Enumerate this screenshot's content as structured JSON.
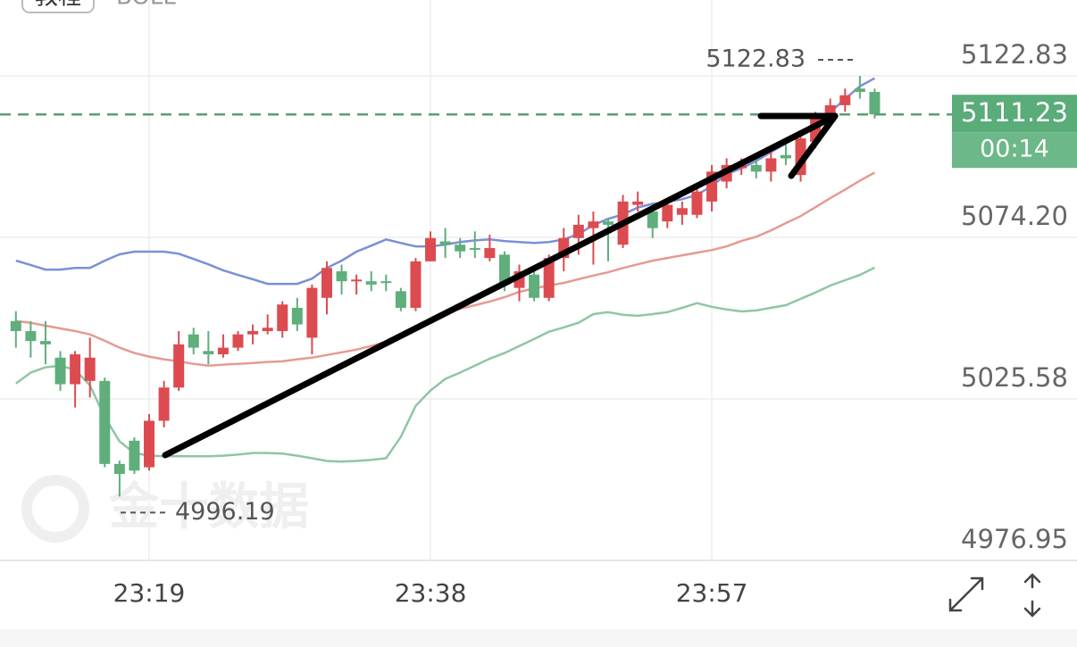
{
  "chart_data": {
    "type": "candlestick",
    "header_button": "教程",
    "indicator": "BOLL",
    "watermark": "金十数据",
    "categories": [
      null,
      null,
      null,
      null,
      null,
      null,
      null,
      null,
      null,
      "23:19",
      null,
      null,
      null,
      null,
      null,
      null,
      null,
      null,
      null,
      null,
      null,
      null,
      null,
      null,
      null,
      null,
      null,
      null,
      "23:38",
      null,
      null,
      null,
      null,
      null,
      null,
      null,
      null,
      null,
      null,
      null,
      null,
      null,
      null,
      null,
      null,
      null,
      null,
      "23:57",
      null,
      null,
      null,
      null,
      null,
      null,
      null,
      null,
      null,
      null,
      null
    ],
    "open": [
      5049,
      5046,
      5043,
      5038,
      5030,
      5031,
      5031,
      5006,
      5013,
      5005,
      5019,
      5029,
      5045,
      5040,
      5039,
      5041,
      5045,
      5046,
      5046,
      5053,
      5044,
      5056,
      5064,
      5061,
      5061,
      5061,
      5058,
      5053,
      5067,
      5073,
      5072,
      5071,
      5068,
      5069,
      5059,
      5063,
      5056,
      5068,
      5074,
      5077,
      5079,
      5072,
      5084,
      5082,
      5079,
      5081,
      5081,
      5085,
      5091,
      5095,
      5096,
      5094,
      5099,
      5093,
      5103,
      5109,
      5114,
      5119,
      5118
    ],
    "high": [
      5052,
      5049,
      5049,
      5040,
      5040,
      5044,
      5032,
      5007,
      5014,
      5021,
      5031,
      5046,
      5047,
      5046,
      5045,
      5046,
      5048,
      5051,
      5055,
      5056,
      5060,
      5067,
      5066,
      5063,
      5064,
      5063,
      5059,
      5068,
      5076,
      5077,
      5074,
      5076,
      5075,
      5070,
      5066,
      5065,
      5069,
      5077,
      5081,
      5082,
      5080,
      5087,
      5088,
      5083,
      5086,
      5085,
      5089,
      5096,
      5098,
      5098,
      5098,
      5100,
      5103,
      5106,
      5112,
      5116,
      5119,
      5122.83,
      5119
    ],
    "low": [
      5041,
      5038,
      5036,
      5028,
      5023,
      5026,
      5005,
      4996.19,
      5003,
      5004,
      5017,
      5028,
      5039,
      5036,
      5038,
      5040,
      5042,
      5045,
      5044,
      5046,
      5039,
      5051,
      5057,
      5057,
      5058,
      5058,
      5052,
      5052,
      5067,
      5068,
      5068,
      5068,
      5067,
      5058,
      5055,
      5055,
      5055,
      5064,
      5069,
      5066,
      5067,
      5071,
      5082,
      5074,
      5077,
      5078,
      5080,
      5082,
      5089,
      5093,
      5092,
      5091,
      5096,
      5091,
      5101,
      5108,
      5112,
      5116,
      5110
    ],
    "close": [
      5046,
      5043,
      5042,
      5030,
      5039,
      5038,
      5006,
      5003,
      5004,
      5019,
      5029,
      5042,
      5041,
      5039,
      5041,
      5045,
      5046,
      5047,
      5054,
      5048,
      5059,
      5065,
      5061,
      5061.5,
      5060,
      5060.5,
      5053,
      5067,
      5074,
      5072,
      5070,
      5070.5,
      5071,
      5060,
      5064,
      5056,
      5068,
      5074,
      5078,
      5079,
      5078,
      5085,
      5085,
      5077,
      5084,
      5083,
      5088,
      5094,
      5096,
      5096,
      5094,
      5098,
      5098,
      5104,
      5110,
      5114,
      5117,
      5118,
      5111.23
    ],
    "up_color": "#dc4b50",
    "down_color": "#5fae7b",
    "bands": [
      {
        "color": "#7b8fd8",
        "values": [
          5067.2,
          5065.9,
          5064.5,
          5064.5,
          5065.0,
          5065.0,
          5067.2,
          5069.1,
          5069.9,
          5069.9,
          5069.9,
          5069.3,
          5067.7,
          5066.1,
          5064.3,
          5062.9,
          5061.6,
          5060.2,
          5060.2,
          5060.2,
          5061.8,
          5065.0,
          5067.2,
          5069.9,
          5071.7,
          5073.6,
          5072.5,
          5071.5,
          5071.5,
          5072.0,
          5072.8,
          5073.3,
          5073.6,
          5073.1,
          5072.8,
          5072.5,
          5072.8,
          5073.6,
          5075.2,
          5077.9,
          5079.8,
          5081.1,
          5083.2,
          5084.3,
          5084.9,
          5085.7,
          5087.0,
          5089.7,
          5093.2,
          5095.0,
          5097.2,
          5099.9,
          5102.5,
          5105.2,
          5108.4,
          5111.9,
          5115.9,
          5119.7,
          5122.1
        ]
      },
      {
        "color": "#e69a94",
        "values": [
          5049.0,
          5048.5,
          5047.6,
          5046.8,
          5046.0,
          5045.0,
          5043.1,
          5041.0,
          5039.4,
          5038.3,
          5037.5,
          5036.9,
          5036.1,
          5035.6,
          5035.9,
          5036.1,
          5036.4,
          5036.7,
          5036.9,
          5037.5,
          5038.0,
          5038.8,
          5039.6,
          5040.4,
          5041.5,
          5042.8,
          5044.7,
          5046.8,
          5049.5,
          5051.4,
          5052.7,
          5053.8,
          5054.9,
          5056.2,
          5057.8,
          5058.9,
          5059.7,
          5060.5,
          5061.6,
          5062.7,
          5063.7,
          5065.0,
          5066.1,
          5067.2,
          5068.0,
          5068.8,
          5069.6,
          5070.4,
          5071.5,
          5073.1,
          5074.4,
          5076.3,
          5078.5,
          5080.6,
          5083.3,
          5086.0,
          5088.6,
          5091.3,
          5093.7
        ]
      },
      {
        "color": "#8fc6a3",
        "values": [
          5030.2,
          5033.5,
          5035.1,
          5035.6,
          5034.3,
          5029.7,
          5020.1,
          5012.8,
          5009.3,
          5008.5,
          5008.3,
          5008.3,
          5008.3,
          5008.3,
          5008.5,
          5008.8,
          5009.3,
          5009.3,
          5009.1,
          5008.5,
          5007.7,
          5006.9,
          5006.7,
          5006.9,
          5007.2,
          5007.7,
          5014.2,
          5023.5,
          5028.1,
          5031.6,
          5033.5,
          5035.6,
          5037.7,
          5039.4,
          5041.5,
          5043.6,
          5045.8,
          5047.1,
          5048.5,
          5051.1,
          5051.7,
          5050.9,
          5050.6,
          5051.1,
          5051.7,
          5053.0,
          5054.4,
          5053.3,
          5052.5,
          5051.9,
          5052.2,
          5053.0,
          5053.8,
          5055.7,
          5057.6,
          5059.7,
          5061.3,
          5062.9,
          5065.1
        ]
      }
    ],
    "ylim": [
      4976.95,
      5145.67
    ],
    "yticks": [
      5122.83,
      {
        "value": 5074.2,
        "label": "5074.20"
      },
      5025.58,
      4976.95
    ],
    "grid": true,
    "last_price": 5111.23,
    "countdown": "00:14",
    "annotations": [
      {
        "value": 5122.83,
        "side": "above"
      },
      {
        "value": 4996.19,
        "side": "below"
      }
    ]
  }
}
